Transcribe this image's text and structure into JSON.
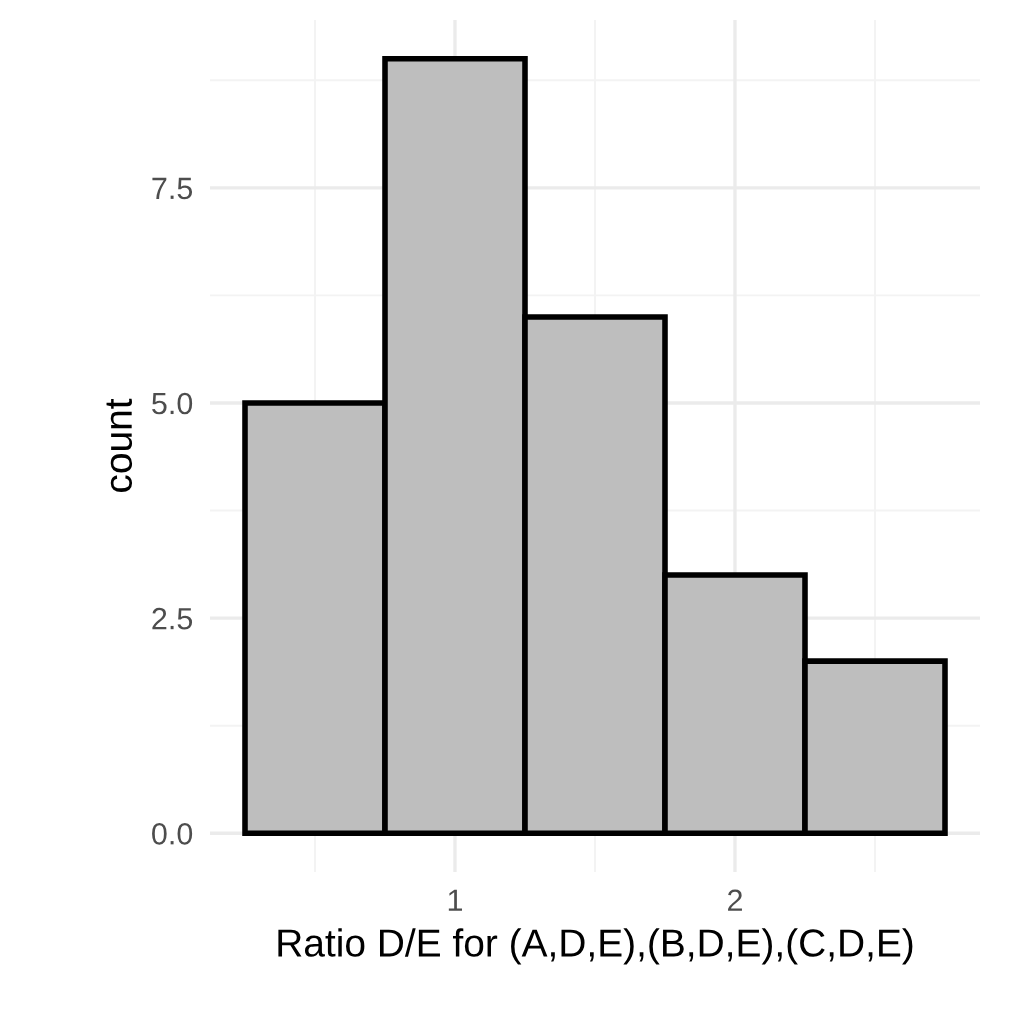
{
  "chart_data": {
    "type": "histogram",
    "xlabel": "Ratio D/E for (A,D,E),(B,D,E),(C,D,E)",
    "ylabel": "count",
    "bins": [
      0.25,
      0.75,
      1.25,
      1.75,
      2.25,
      2.75
    ],
    "values": [
      5,
      9,
      6,
      3,
      2
    ],
    "color": "#bebebe",
    "xlim": [
      0.125,
      2.875
    ],
    "ylim": [
      -0.45,
      9.45
    ],
    "xticks": [
      1,
      2
    ],
    "yticks": [
      {
        "value": 0,
        "label": "0.0"
      },
      {
        "value": 2.5,
        "label": "2.5"
      },
      {
        "value": 5,
        "label": "5.0"
      },
      {
        "value": 7.5,
        "label": "7.5"
      }
    ],
    "grid": true
  }
}
